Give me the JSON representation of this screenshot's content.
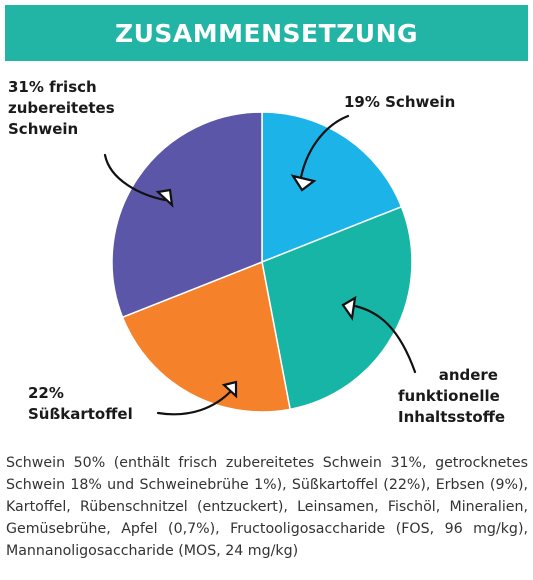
{
  "chart_data": {
    "type": "pie",
    "title": "ZUSAMMENSETZUNG",
    "categories": [
      "19% Schwein",
      "andere funktionelle Inhaltsstoffe",
      "22% Süßkartoffel",
      "31% frisch zubereitetes Schwein"
    ],
    "values": [
      19,
      28,
      22,
      31
    ],
    "colors": [
      "#1cb4e8",
      "#17b5a6",
      "#f5822a",
      "#5b56a7"
    ],
    "description": "Schwein 50% (enthält frisch zubereitetes Schwein 31%, getrocknetes Schwein 18% und Schweinebrühe 1%), Süßkartoffel (22%), Erbsen (9%), Kartoffel, Rübenschnitzel (entzuckert), Leinsamen, Fischöl, Mineralien, Gemüsebrühe, Apfel (0,7%), Fructooligosaccharide (FOS, 96 mg/kg), Mannanoligosaccharide (MOS, 24 mg/kg)"
  }
}
